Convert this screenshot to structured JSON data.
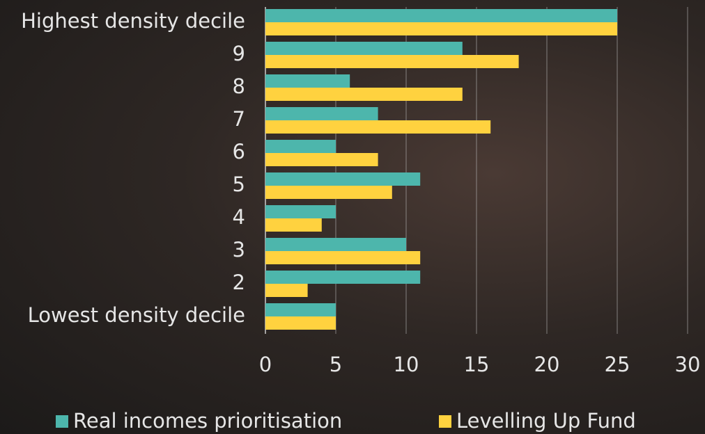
{
  "chart_data": {
    "type": "bar",
    "orientation": "horizontal",
    "categories": [
      "Highest density decile",
      "9",
      "8",
      "7",
      "6",
      "5",
      "4",
      "3",
      "2",
      "Lowest density decile"
    ],
    "series": [
      {
        "name": "Real incomes prioritisation",
        "color": "#4db6ac",
        "values": [
          25,
          14,
          6,
          8,
          5,
          11,
          5,
          10,
          11,
          5
        ]
      },
      {
        "name": "Levelling Up Fund",
        "color": "#ffd23f",
        "values": [
          25,
          18,
          14,
          16,
          8,
          9,
          4,
          11,
          3,
          5
        ]
      }
    ],
    "xlim": [
      0,
      30
    ],
    "xticks": [
      0,
      5,
      10,
      15,
      20,
      25,
      30
    ],
    "grid": true,
    "legend": "bottom"
  }
}
